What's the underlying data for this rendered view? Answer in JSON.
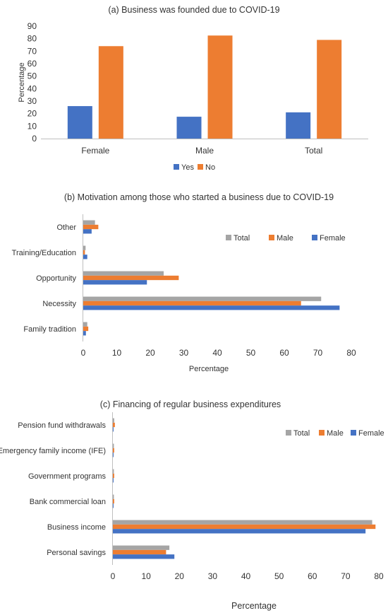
{
  "chart_data": [
    {
      "type": "bar",
      "title": "(a) Business was founded due to COVID-19",
      "ylabel": "Percentage",
      "categories": [
        "Female",
        "Male",
        "Total"
      ],
      "ylim": [
        0,
        90
      ],
      "yticks": [
        0,
        10,
        20,
        30,
        40,
        50,
        60,
        70,
        80,
        90
      ],
      "series": [
        {
          "name": "Yes",
          "color": "#4472C4",
          "values": [
            26,
            17.5,
            21
          ]
        },
        {
          "name": "No",
          "color": "#ED7D31",
          "values": [
            74,
            82.5,
            79
          ]
        }
      ],
      "legend": "bottom"
    },
    {
      "type": "bar",
      "orientation": "horizontal",
      "title": "(b) Motivation among those who started a business due to COVID-19",
      "xlabel": "Percentage",
      "categories": [
        "Other",
        "Training/Education",
        "Opportunity",
        "Necessity",
        "Family tradition"
      ],
      "xlim": [
        0,
        80
      ],
      "xticks": [
        0,
        10,
        20,
        30,
        40,
        50,
        60,
        70,
        80
      ],
      "series": [
        {
          "name": "Total",
          "color": "#A5A5A5",
          "values": [
            3.5,
            0.7,
            24,
            71,
            1.2
          ]
        },
        {
          "name": "Male",
          "color": "#ED7D31",
          "values": [
            4.5,
            0.5,
            28.5,
            65,
            1.5
          ]
        },
        {
          "name": "Female",
          "color": "#4472C4",
          "values": [
            2.5,
            1.2,
            19,
            76.5,
            0.8
          ]
        }
      ],
      "legend": "top-right"
    },
    {
      "type": "bar",
      "orientation": "horizontal",
      "title": "(c) Financing of regular business expenditures",
      "xlabel": "Percentage",
      "categories": [
        "Pension fund withdrawals",
        "Emergency family income (IFE)",
        "Government programs",
        "Bank commercial loan",
        "Business income",
        "Personal savings"
      ],
      "xlim": [
        0,
        80
      ],
      "xticks": [
        0,
        10,
        20,
        30,
        40,
        50,
        60,
        70,
        80
      ],
      "series": [
        {
          "name": "Total",
          "color": "#A5A5A5",
          "values": [
            0.4,
            0.3,
            0.3,
            0.3,
            78,
            17
          ]
        },
        {
          "name": "Male",
          "color": "#ED7D31",
          "values": [
            0.6,
            0.4,
            0.4,
            0.4,
            79,
            16
          ]
        },
        {
          "name": "Female",
          "color": "#4472C4",
          "values": [
            0.2,
            0.2,
            0.2,
            0.2,
            76,
            18.5
          ]
        }
      ],
      "legend": "top-right"
    }
  ]
}
